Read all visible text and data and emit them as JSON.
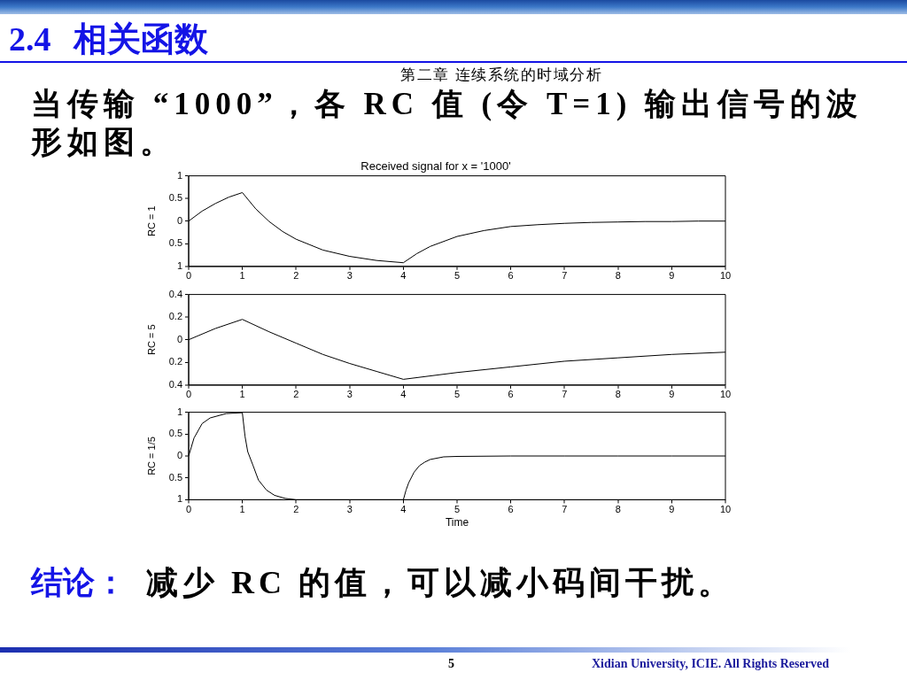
{
  "chart_data": [
    {
      "type": "other",
      "title": "2.4 相关函数",
      "subtitle": "当传输 “1000”，各 RC 值 (令 T=1) 输出信号的波形如图。",
      "annotations": [
        "第二章 连续系统的时域分析"
      ]
    },
    {
      "type": "line",
      "title": "Received signal for x = '1000'",
      "ylabel": "RC = 1",
      "x": [
        0,
        0.25,
        0.5,
        0.75,
        1,
        1.25,
        1.5,
        1.75,
        2,
        2.5,
        3,
        3.5,
        4,
        4.25,
        4.5,
        5,
        5.5,
        6,
        6.5,
        7,
        7.5,
        8,
        8.5,
        9,
        9.5,
        10
      ],
      "series": [
        {
          "color": "#000000",
          "values": [
            0,
            0.22,
            0.39,
            0.53,
            0.63,
            0.27,
            -0.01,
            -0.23,
            -0.4,
            -0.64,
            -0.78,
            -0.87,
            -0.92,
            -0.72,
            -0.56,
            -0.34,
            -0.21,
            -0.12,
            -0.08,
            -0.05,
            -0.03,
            -0.02,
            -0.01,
            -0.01,
            0,
            0
          ]
        }
      ],
      "xlim": [
        0,
        10
      ],
      "xticks": [
        0,
        1,
        2,
        3,
        4,
        5,
        6,
        7,
        8,
        9,
        10
      ],
      "ylim": [
        -1,
        1
      ],
      "yticks": [
        {
          "value": -1,
          "label": "1"
        },
        {
          "value": -0.5,
          "label": "0.5"
        },
        0,
        0.5,
        1
      ],
      "marker": "none"
    },
    {
      "type": "line",
      "ylabel": "RC = 5",
      "x": [
        0,
        0.5,
        1,
        1.5,
        2,
        2.5,
        3,
        3.5,
        4,
        5,
        6,
        7,
        8,
        9,
        10
      ],
      "series": [
        {
          "color": "#000000",
          "values": [
            0,
            0.1,
            0.18,
            0.07,
            -0.03,
            -0.13,
            -0.21,
            -0.28,
            -0.35,
            -0.29,
            -0.24,
            -0.19,
            -0.16,
            -0.13,
            -0.11
          ]
        }
      ],
      "xlim": [
        0,
        10
      ],
      "xticks": [
        0,
        1,
        2,
        3,
        4,
        5,
        6,
        7,
        8,
        9,
        10
      ],
      "ylim": [
        -0.4,
        0.4
      ],
      "yticks": [
        {
          "value": -0.4,
          "label": "0.4"
        },
        {
          "value": -0.2,
          "label": "0.2"
        },
        0,
        0.2,
        0.4
      ],
      "marker": "none"
    },
    {
      "type": "line",
      "xlabel": "Time",
      "ylabel": "RC = 1/5",
      "x": [
        0,
        0.1,
        0.25,
        0.4,
        0.7,
        1,
        1.05,
        1.1,
        1.2,
        1.3,
        1.45,
        1.6,
        1.8,
        2,
        3,
        4,
        4.05,
        4.1,
        4.2,
        4.3,
        4.4,
        4.5,
        4.75,
        5,
        6,
        7,
        8,
        9,
        10
      ],
      "series": [
        {
          "color": "#000000",
          "values": [
            0,
            0.41,
            0.74,
            0.87,
            0.97,
            0.99,
            0.45,
            0.1,
            -0.22,
            -0.55,
            -0.78,
            -0.9,
            -0.97,
            -1,
            -1,
            -1,
            -0.78,
            -0.61,
            -0.37,
            -0.22,
            -0.14,
            -0.08,
            -0.02,
            -0.01,
            0,
            0,
            0,
            0,
            0
          ]
        }
      ],
      "xlim": [
        0,
        10
      ],
      "xticks": [
        0,
        1,
        2,
        3,
        4,
        5,
        6,
        7,
        8,
        9,
        10
      ],
      "ylim": [
        -1,
        1
      ],
      "yticks": [
        {
          "value": -1,
          "label": "1"
        },
        {
          "value": -0.5,
          "label": "0.5"
        },
        0,
        0.5,
        1
      ],
      "marker": "none"
    },
    {
      "type": "other",
      "annotations": [
        "结论：",
        "减少 RC 的值，可以减小码间干扰。",
        "5",
        "Xidian University, ICIE. All Rights Reserved"
      ]
    }
  ]
}
